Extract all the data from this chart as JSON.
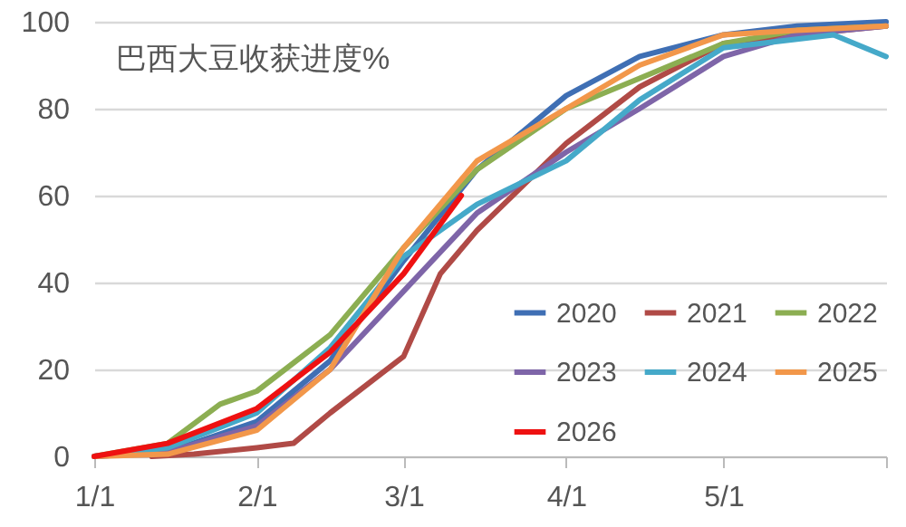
{
  "chart_data": {
    "type": "line",
    "title": "巴西大豆收获进度%",
    "xlim": [
      "--01-01",
      "--06-01"
    ],
    "xticks": [
      {
        "value": "--01-01",
        "label": "1/1"
      },
      {
        "value": "--02-01",
        "label": "2/1"
      },
      {
        "value": "--03-01",
        "label": "3/1"
      },
      {
        "value": "--04-01",
        "label": "4/1"
      },
      {
        "value": "--05-01",
        "label": "5/1"
      },
      {
        "value": "--06-01",
        "label": null
      }
    ],
    "ylim": [
      0,
      100
    ],
    "yticks": [
      0,
      20,
      40,
      60,
      80,
      100
    ],
    "grid": "y",
    "legend": "bottom right",
    "series": [
      {
        "name": "2020",
        "color": "#3f6fb4",
        "x": [
          "--01-01",
          "--01-15",
          "--02-01",
          "--02-15",
          "--03-01",
          "--03-15",
          "--04-01",
          "--04-15",
          "--05-01",
          "--05-15",
          "--06-01"
        ],
        "values": [
          0,
          1,
          8,
          22,
          45,
          66,
          83,
          92,
          97,
          99,
          100
        ]
      },
      {
        "name": "2021",
        "color": "#b04a46",
        "x": [
          "--01-12",
          "--01-20",
          "--02-01",
          "--02-08",
          "--02-15",
          "--03-01",
          "--03-08",
          "--03-15",
          "--04-01",
          "--04-15",
          "--05-01",
          "--05-15",
          "--06-01"
        ],
        "values": [
          0,
          0.5,
          2,
          3,
          10,
          23,
          42,
          52,
          72,
          85,
          95,
          97,
          99
        ]
      },
      {
        "name": "2022",
        "color": "#8cae52",
        "x": [
          "--01-01",
          "--01-15",
          "--01-25",
          "--02-01",
          "--02-15",
          "--03-01",
          "--03-15",
          "--04-01",
          "--04-15",
          "--05-01",
          "--05-15",
          "--06-01"
        ],
        "values": [
          0,
          3,
          12,
          15,
          28,
          48,
          66,
          80,
          87,
          95,
          98,
          99
        ]
      },
      {
        "name": "2023",
        "color": "#7e65a8",
        "x": [
          "--01-01",
          "--01-15",
          "--02-01",
          "--02-15",
          "--03-01",
          "--03-15",
          "--04-01",
          "--04-15",
          "--05-01",
          "--05-15",
          "--06-01"
        ],
        "values": [
          0,
          1,
          7,
          20,
          38,
          56,
          70,
          80,
          92,
          97,
          99
        ]
      },
      {
        "name": "2024",
        "color": "#45a9c9",
        "x": [
          "--01-01",
          "--01-15",
          "--02-01",
          "--02-15",
          "--03-01",
          "--03-15",
          "--04-01",
          "--04-15",
          "--05-01",
          "--05-15",
          "--05-22",
          "--06-01"
        ],
        "values": [
          0,
          2,
          10,
          25,
          46,
          58,
          68,
          82,
          94,
          96,
          97,
          92
        ]
      },
      {
        "name": "2025",
        "color": "#f2974a",
        "x": [
          "--01-01",
          "--01-15",
          "--02-01",
          "--02-15",
          "--03-01",
          "--03-15",
          "--04-01",
          "--04-15",
          "--05-01",
          "--05-15",
          "--06-01"
        ],
        "values": [
          0,
          0.5,
          6,
          20,
          48,
          68,
          80,
          90,
          97,
          98,
          99
        ]
      },
      {
        "name": "2026",
        "color": "#ee1111",
        "x": [
          "--01-01",
          "--01-15",
          "--02-01",
          "--02-15",
          "--03-01",
          "--03-12"
        ],
        "values": [
          0,
          3,
          11,
          24,
          42,
          60
        ]
      }
    ]
  }
}
